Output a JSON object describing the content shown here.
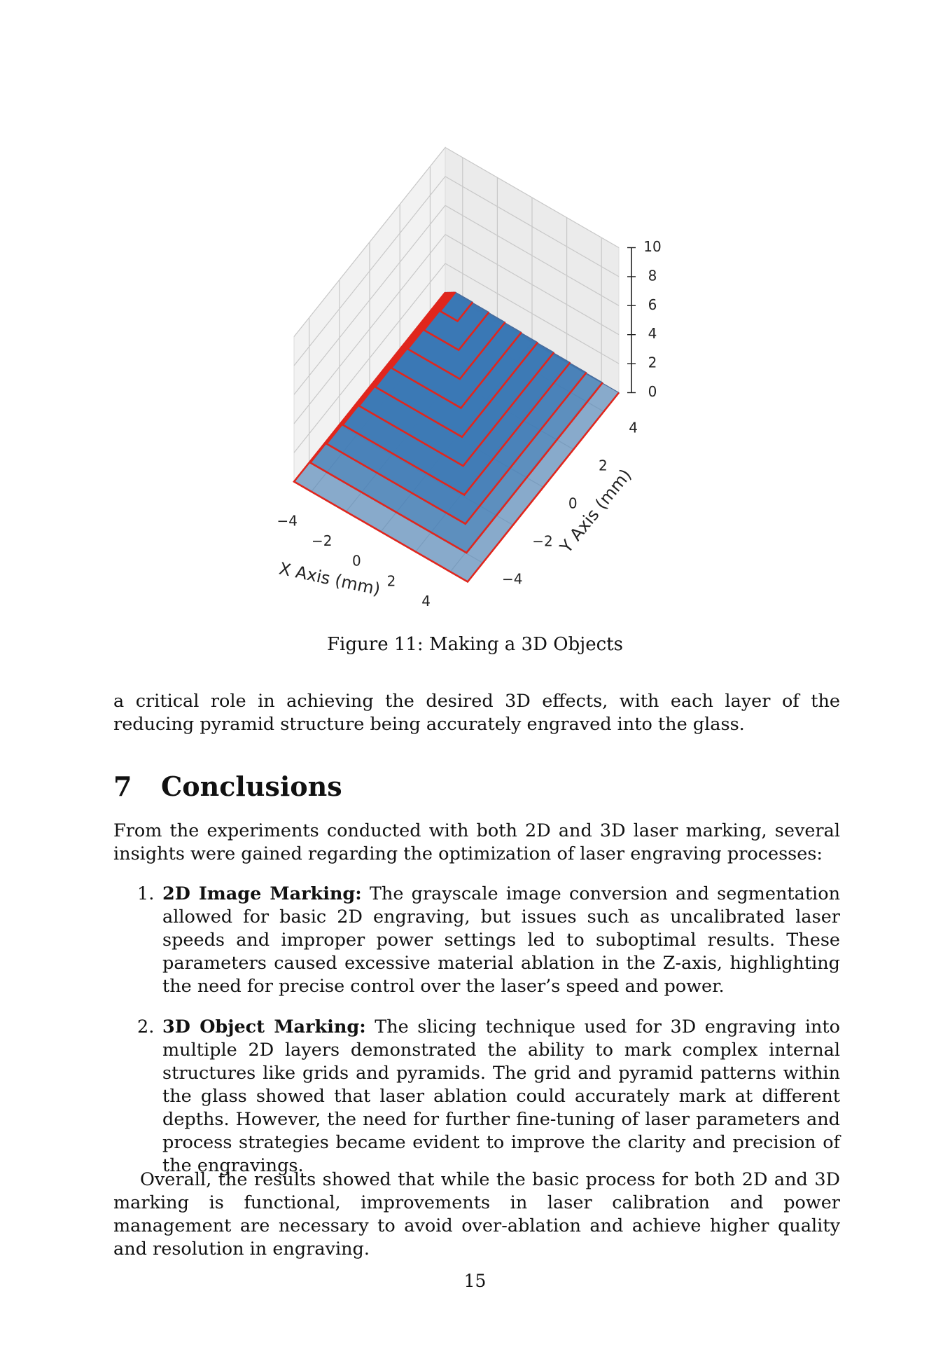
{
  "figure": {
    "caption": "Figure 11: Making a 3D Objects",
    "chart_data": {
      "type": "3d-stacked-layers",
      "xlabel": "X Axis (mm)",
      "ylabel": "Y Axis (mm)",
      "x_ticks": [
        "−4",
        "−2",
        "0",
        "2",
        "4"
      ],
      "y_ticks": [
        "−4",
        "−2",
        "0",
        "2",
        "4"
      ],
      "z_ticks": [
        "0",
        "2",
        "4",
        "6",
        "8",
        "10"
      ],
      "xlim": [
        -5,
        5
      ],
      "ylim": [
        -5,
        5
      ],
      "zlim": [
        0,
        10
      ],
      "layers": [
        {
          "z": 0,
          "half_size": 5.0
        },
        {
          "z": 1,
          "half_size": 4.5
        },
        {
          "z": 2,
          "half_size": 4.0
        },
        {
          "z": 3,
          "half_size": 3.5
        },
        {
          "z": 4,
          "half_size": 3.0
        },
        {
          "z": 5,
          "half_size": 2.5
        },
        {
          "z": 6,
          "half_size": 2.0
        },
        {
          "z": 7,
          "half_size": 1.5
        },
        {
          "z": 8,
          "half_size": 1.0
        },
        {
          "z": 9,
          "half_size": 0.5
        }
      ],
      "fill_color": "#3a78b5",
      "edge_color": "#e0261d"
    }
  },
  "intro_paragraph": "a critical role in achieving the desired 3D effects, with each layer of the reducing pyramid structure being accurately engraved into the glass.",
  "section": {
    "number": "7",
    "title": "Conclusions"
  },
  "conclusion_intro": "From the experiments conducted with both 2D and 3D laser marking, several insights were gained regarding the optimization of laser engraving processes:",
  "items": [
    {
      "marker": "1.",
      "lead": "2D Image Marking:",
      "text": " The grayscale image conversion and segmentation allowed for basic 2D engraving, but issues such as uncalibrated laser speeds and improper power settings led to suboptimal results. These parameters caused excessive material ablation in the Z-axis, highlighting the need for precise control over the laser’s speed and power."
    },
    {
      "marker": "2.",
      "lead": "3D Object Marking:",
      "text": " The slicing technique used for 3D engraving into multiple 2D layers demonstrated the ability to mark complex internal structures like grids and pyramids. The grid and pyramid patterns within the glass showed that laser ablation could accurately mark at different depths. However, the need for further fine-tuning of laser parameters and process strategies became evident to improve the clarity and precision of the engravings."
    }
  ],
  "closing_paragraph": "Overall, the results showed that while the basic process for both 2D and 3D marking is functional, improvements in laser calibration and power management are necessary to avoid over-ablation and achieve higher quality and resolution in engraving.",
  "page_number": "15"
}
